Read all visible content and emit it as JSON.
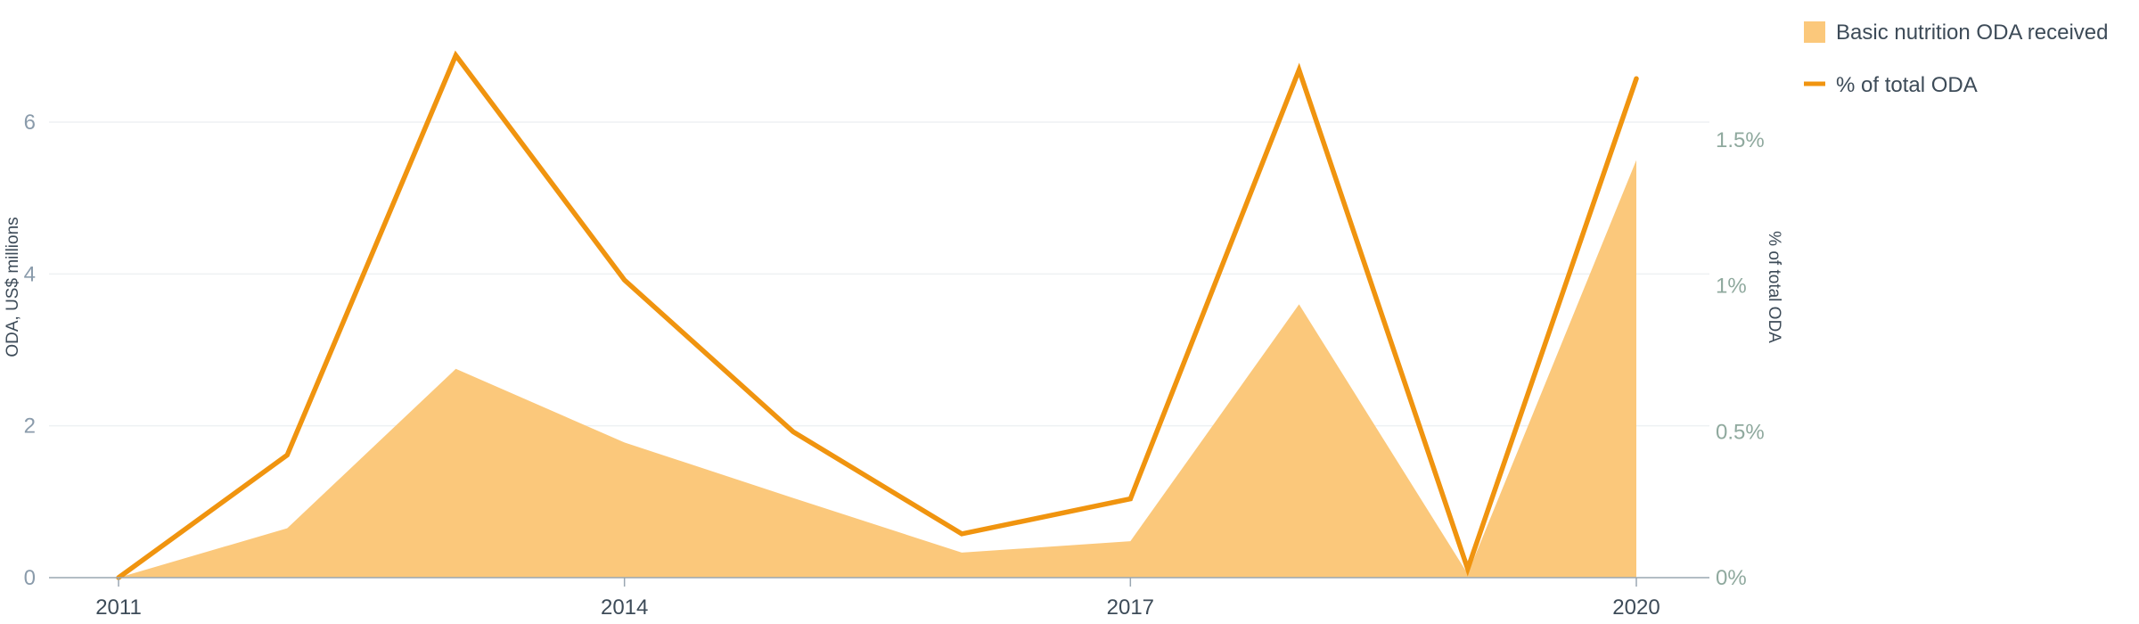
{
  "chart_data": {
    "type": "area+line",
    "x": [
      2011,
      2012,
      2013,
      2014,
      2015,
      2016,
      2017,
      2018,
      2019,
      2020
    ],
    "x_ticks": [
      2011,
      2014,
      2017,
      2020
    ],
    "x_tick_labels": [
      "2011",
      "2014",
      "2017",
      "2020"
    ],
    "y_left": {
      "label": "ODA, US$ millions",
      "range": [
        0,
        6.8
      ],
      "ticks": [
        0,
        2,
        4,
        6
      ],
      "tick_labels": [
        "0",
        "2",
        "4",
        "6"
      ]
    },
    "y_right": {
      "label": "% of total ODA",
      "range": [
        0,
        1.7627
      ],
      "ticks": [
        0,
        0.5,
        1,
        1.5
      ],
      "tick_labels": [
        "0%",
        "0.5%",
        "1%",
        "1.5%"
      ]
    },
    "series": [
      {
        "name": "Basic nutrition ODA received",
        "type": "area",
        "axis": "left",
        "color": "#fbc87b",
        "values": [
          0,
          0.65,
          2.75,
          1.78,
          1.05,
          0.33,
          0.48,
          3.6,
          0.05,
          5.5
        ]
      },
      {
        "name": "% of total ODA",
        "type": "line",
        "axis": "right",
        "color": "#f0940f",
        "values": [
          0,
          0.42,
          1.79,
          1.02,
          0.5,
          0.15,
          0.27,
          1.74,
          0.03,
          1.71
        ]
      }
    ],
    "grid": true,
    "legend": "top-right"
  }
}
